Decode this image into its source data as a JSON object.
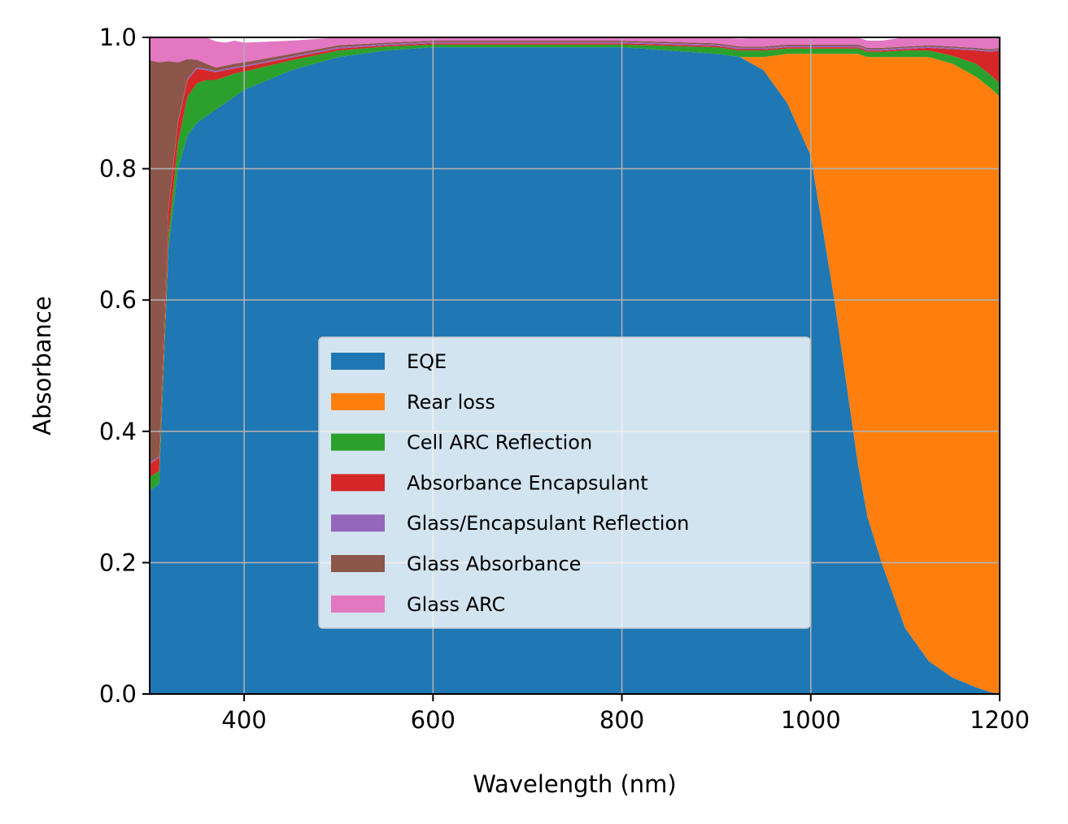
{
  "chart_data": {
    "type": "area",
    "stacked": true,
    "xlabel": "Wavelength (nm)",
    "ylabel": "Absorbance",
    "xlim": [
      300,
      1200
    ],
    "ylim": [
      0,
      1
    ],
    "xticks": [
      400,
      600,
      800,
      1000,
      1200
    ],
    "xtick_labels": [
      "400",
      "600",
      "800",
      "1000",
      "1200"
    ],
    "yticks": [
      0,
      0.2,
      0.4,
      0.6,
      0.8,
      1.0
    ],
    "ytick_labels": [
      "0.0",
      "0.2",
      "0.4",
      "0.6",
      "0.8",
      "1.0"
    ],
    "grid": true,
    "legend_position": "center",
    "x": [
      300,
      310,
      320,
      330,
      340,
      350,
      360,
      370,
      380,
      390,
      400,
      450,
      500,
      550,
      600,
      650,
      700,
      750,
      800,
      850,
      900,
      925,
      950,
      975,
      1000,
      1025,
      1040,
      1050,
      1060,
      1075,
      1100,
      1125,
      1150,
      1175,
      1190,
      1200
    ],
    "series": [
      {
        "name": "EQE",
        "color": "#1f77b4",
        "values": [
          0.31,
          0.32,
          0.68,
          0.8,
          0.85,
          0.87,
          0.88,
          0.89,
          0.9,
          0.91,
          0.92,
          0.95,
          0.97,
          0.98,
          0.985,
          0.985,
          0.985,
          0.985,
          0.985,
          0.98,
          0.975,
          0.97,
          0.95,
          0.9,
          0.82,
          0.6,
          0.45,
          0.35,
          0.27,
          0.2,
          0.1,
          0.05,
          0.025,
          0.01,
          0.003,
          0.0
        ]
      },
      {
        "name": "Rear loss",
        "color": "#ff7f0e",
        "values": [
          0,
          0,
          0,
          0,
          0,
          0,
          0,
          0,
          0,
          0,
          0,
          0,
          0,
          0,
          0,
          0,
          0,
          0,
          0,
          0,
          0,
          0,
          0.02,
          0.075,
          0.155,
          0.375,
          0.525,
          0.625,
          0.7,
          0.77,
          0.87,
          0.92,
          0.935,
          0.93,
          0.92,
          0.91
        ]
      },
      {
        "name": "Cell ARC Reflection",
        "color": "#2ca02c",
        "values": [
          0.02,
          0.02,
          0.02,
          0.04,
          0.06,
          0.06,
          0.055,
          0.045,
          0.04,
          0.035,
          0.028,
          0.015,
          0.01,
          0.006,
          0.004,
          0.004,
          0.004,
          0.004,
          0.004,
          0.007,
          0.01,
          0.01,
          0.01,
          0.008,
          0.008,
          0.008,
          0.008,
          0.008,
          0.008,
          0.008,
          0.01,
          0.01,
          0.012,
          0.02,
          0.02,
          0.02
        ]
      },
      {
        "name": "Absorbance Encapsulant",
        "color": "#d62728",
        "values": [
          0.02,
          0.02,
          0.04,
          0.03,
          0.025,
          0.022,
          0.015,
          0.012,
          0.01,
          0.008,
          0.007,
          0.004,
          0.003,
          0.002,
          0.002,
          0.002,
          0.002,
          0.002,
          0.002,
          0.002,
          0.002,
          0.002,
          0.002,
          0.002,
          0.002,
          0.002,
          0.002,
          0.002,
          0.002,
          0.002,
          0.002,
          0.004,
          0.01,
          0.02,
          0.035,
          0.05
        ]
      },
      {
        "name": "Glass/Encapsulant Reflection",
        "color": "#9467bd",
        "values": [
          0.002,
          0.002,
          0.002,
          0.002,
          0.002,
          0.002,
          0.002,
          0.002,
          0.002,
          0.002,
          0.002,
          0.002,
          0.002,
          0.002,
          0.002,
          0.002,
          0.002,
          0.002,
          0.002,
          0.002,
          0.002,
          0.002,
          0.002,
          0.002,
          0.002,
          0.002,
          0.002,
          0.002,
          0.002,
          0.002,
          0.002,
          0.002,
          0.002,
          0.002,
          0.002,
          0.002
        ]
      },
      {
        "name": "Glass Absorbance",
        "color": "#8c564b",
        "values": [
          0.613,
          0.6,
          0.222,
          0.09,
          0.03,
          0.012,
          0.008,
          0.005,
          0.005,
          0.005,
          0.005,
          0.004,
          0.003,
          0.002,
          0.002,
          0.002,
          0.002,
          0.002,
          0.002,
          0.002,
          0.002,
          0.002,
          0.002,
          0.002,
          0.002,
          0.002,
          0.002,
          0.002,
          0.002,
          0.002,
          0.002,
          0.002,
          0.002,
          0.002,
          0.002,
          0.002
        ]
      },
      {
        "name": "Glass ARC",
        "color": "#e377c2",
        "values": [
          0.035,
          0.04,
          0.04,
          0.042,
          0.045,
          0.046,
          0.045,
          0.04,
          0.035,
          0.035,
          0.03,
          0.02,
          0.013,
          0.008,
          0.005,
          0.005,
          0.005,
          0.005,
          0.005,
          0.007,
          0.009,
          0.012,
          0.014,
          0.011,
          0.011,
          0.011,
          0.011,
          0.011,
          0.011,
          0.011,
          0.014,
          0.012,
          0.014,
          0.016,
          0.018,
          0.016
        ]
      }
    ]
  }
}
